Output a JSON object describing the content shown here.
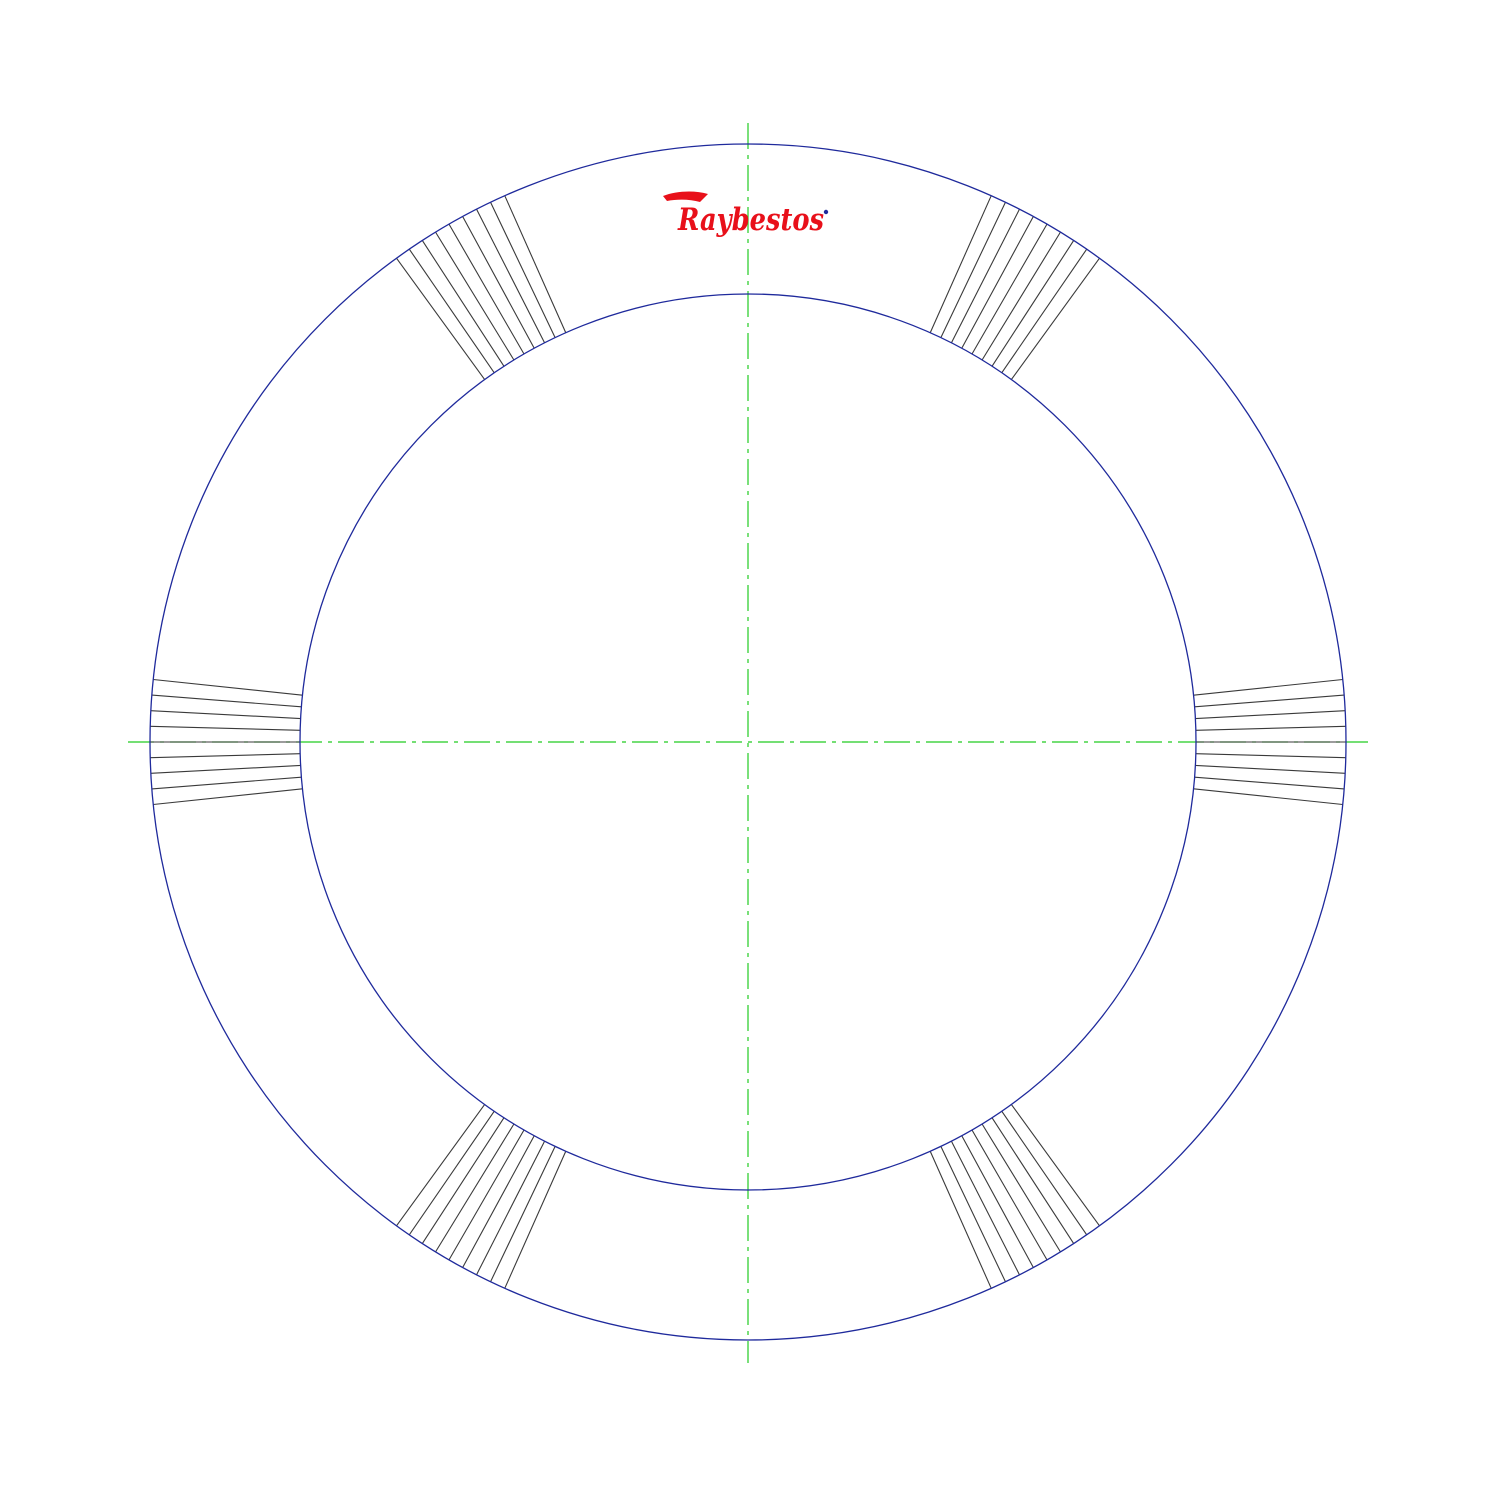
{
  "drawing": {
    "background_color": "#ffffff",
    "ring_color": "#1f2a9c",
    "groove_color": "#3a3a3a",
    "centerline_color": "#22cc22",
    "logo_color": "#e8101a",
    "logo_text": "Raybestos",
    "groove_groups": [
      {
        "position": "top-left",
        "line_count": 9
      },
      {
        "position": "top-right",
        "line_count": 9
      },
      {
        "position": "left",
        "line_count": 9
      },
      {
        "position": "right",
        "line_count": 9
      },
      {
        "position": "bottom-left",
        "line_count": 9
      },
      {
        "position": "bottom-right",
        "line_count": 9
      }
    ]
  }
}
